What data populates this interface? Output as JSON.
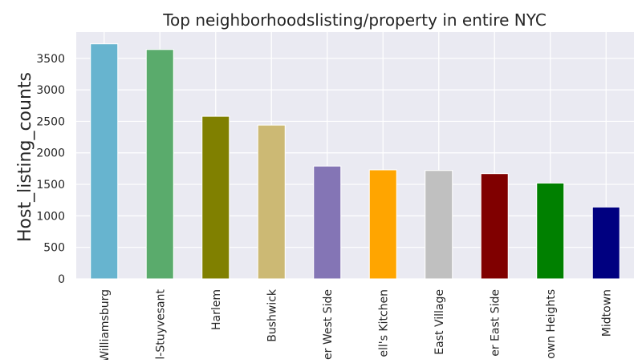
{
  "chart_data": {
    "type": "bar",
    "title": "Top neighborhoodslisting/property in entire NYC",
    "xlabel": "",
    "ylabel": "Host_listing_counts",
    "categories": [
      "Williamsburg",
      "Bedford-Stuyvesant",
      "Harlem",
      "Bushwick",
      "Upper West Side",
      "Hell's Kitchen",
      "East Village",
      "Upper East Side",
      "Washington Heights",
      "Midtown"
    ],
    "visible_tick_labels": [
      "Williamsburg",
      "l-Stuyvesant",
      "Harlem",
      "Bushwick",
      "er West Side",
      "ell's Kitchen",
      "East Village",
      "er East Side",
      "own Heights",
      "Midtown"
    ],
    "values": [
      3730,
      3640,
      2580,
      2440,
      1790,
      1730,
      1720,
      1670,
      1520,
      1140
    ],
    "colors": [
      "#67b4cf",
      "#5aab6c",
      "#808000",
      "#ccb974",
      "#8475b5",
      "#ffa500",
      "#c0c0c0",
      "#800000",
      "#008000",
      "#000080"
    ],
    "yticks": [
      0,
      500,
      1000,
      1500,
      2000,
      2500,
      3000,
      3500
    ],
    "ylim": [
      0,
      3917
    ],
    "grid": true,
    "legend": "none"
  }
}
